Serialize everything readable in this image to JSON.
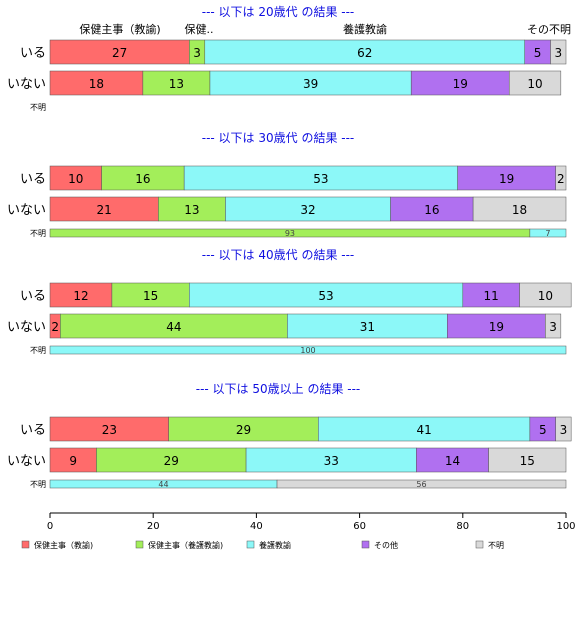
{
  "chart_data": {
    "type": "bar",
    "orientation": "horizontal",
    "stacked": "percent",
    "xlim": [
      0,
      100
    ],
    "xticks": [
      0,
      20,
      40,
      60,
      80,
      100
    ],
    "column_labels": [
      "保健主事（教諭)",
      "保健..",
      "養護教諭",
      "",
      "その不明"
    ],
    "categories": [
      "保健主事（教諭)",
      "保健主事（養護教諭)",
      "養護教諭",
      "その他",
      "不明"
    ],
    "colors": [
      "#ff6b6b",
      "#a3ee5a",
      "#8cf8f8",
      "#b070f0",
      "#d9d9d9"
    ],
    "legend_position": "bottom",
    "panels": [
      {
        "title": "--- 以下は 20歳代 の結果 ---",
        "rows": [
          {
            "label": "いる",
            "values": [
              27,
              3,
              62,
              5,
              3
            ]
          },
          {
            "label": "いない",
            "values": [
              18,
              13,
              39,
              19,
              10
            ]
          },
          {
            "label": "不明",
            "values": [
              0,
              0,
              0,
              0,
              0
            ]
          }
        ]
      },
      {
        "title": "--- 以下は 30歳代 の結果 ---",
        "rows": [
          {
            "label": "いる",
            "values": [
              10,
              16,
              53,
              19,
              2
            ]
          },
          {
            "label": "いない",
            "values": [
              21,
              13,
              32,
              16,
              18
            ]
          },
          {
            "label": "不明",
            "values": [
              0,
              93,
              7,
              0,
              0
            ]
          }
        ]
      },
      {
        "title": "--- 以下は 40歳代 の結果 ---",
        "rows": [
          {
            "label": "いる",
            "values": [
              12,
              15,
              53,
              11,
              10
            ]
          },
          {
            "label": "いない",
            "values": [
              2,
              44,
              31,
              19,
              3
            ]
          },
          {
            "label": "不明",
            "values": [
              0,
              0,
              100,
              0,
              0
            ]
          }
        ]
      },
      {
        "title": "--- 以下は 50歳以上 の結果 ---",
        "rows": [
          {
            "label": "いる",
            "values": [
              23,
              29,
              41,
              5,
              3
            ]
          },
          {
            "label": "いない",
            "values": [
              9,
              29,
              33,
              14,
              15
            ]
          },
          {
            "label": "不明",
            "values": [
              0,
              0,
              44,
              0,
              56
            ]
          }
        ]
      }
    ]
  }
}
